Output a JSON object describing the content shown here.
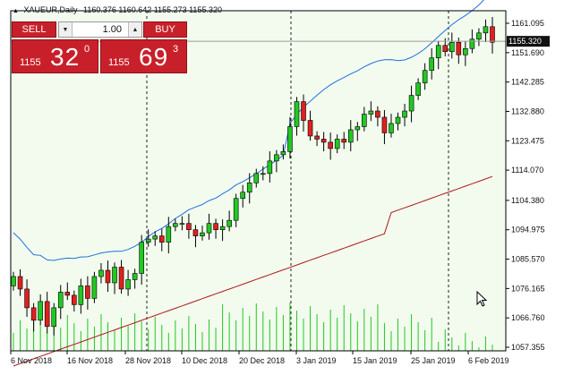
{
  "header": {
    "symbol_label": "XAUEUR,Daily",
    "ohlc": "1160.376 1160.642 1155.273 1155.320"
  },
  "trade_panel": {
    "sell_label": "SELL",
    "buy_label": "BUY",
    "lot_value": "1.00",
    "sell_price_prefix": "1155",
    "sell_price_main": "32",
    "sell_price_sup": "0",
    "buy_price_prefix": "1155",
    "buy_price_main": "69",
    "buy_price_sup": "3"
  },
  "chart_data": {
    "type": "candlestick",
    "current_price_label": "1155.320",
    "y_ticks": [
      "1161.095",
      "1151.690",
      "1142.285",
      "1132.880",
      "1123.475",
      "1114.070",
      "1104.380",
      "1094.975",
      "1085.570",
      "1076.165",
      "1066.760",
      "1057.355"
    ],
    "x_ticks": [
      "6 Nov 2018",
      "16 Nov 2018",
      "28 Nov 2018",
      "10 Dec 2018",
      "20 Dec 2018",
      "3 Jan 2019",
      "15 Jan 2019",
      "25 Jan 2019",
      "6 Feb 2019"
    ],
    "ylim": [
      1057.355,
      1161.095
    ],
    "close_prices": [
      1080,
      1076,
      1070,
      1066,
      1072,
      1064,
      1070,
      1075,
      1074,
      1071,
      1077,
      1073,
      1080,
      1082,
      1078,
      1083,
      1076,
      1079,
      1081,
      1091,
      1092,
      1093,
      1091,
      1096,
      1097,
      1097,
      1095,
      1093,
      1094,
      1097,
      1095,
      1096,
      1098,
      1105,
      1107,
      1110,
      1113,
      1113,
      1117,
      1119,
      1120,
      1128,
      1136,
      1130,
      1125,
      1124,
      1123,
      1121,
      1124,
      1123,
      1127,
      1128,
      1132,
      1133,
      1131,
      1126,
      1129,
      1131,
      1133,
      1138,
      1142,
      1146,
      1150,
      1154,
      1152,
      1155,
      1151,
      1153,
      1156,
      1158,
      1160,
      1155
    ],
    "colors": {
      "bull": "#22c822",
      "bear": "#e02020",
      "upper_band": "#1f6fe0",
      "lower_band": "#b01818",
      "volume": "#22c822",
      "background": "#f2fbee",
      "vline": "#222222"
    }
  }
}
